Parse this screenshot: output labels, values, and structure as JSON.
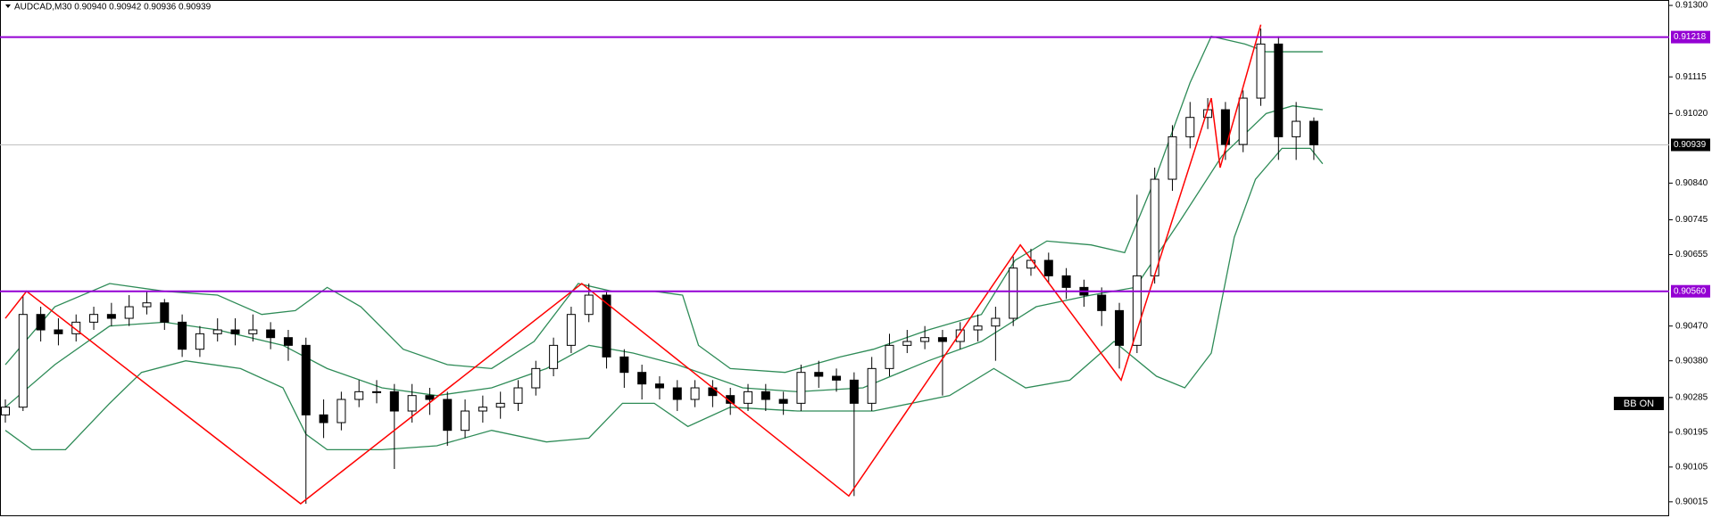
{
  "chart_data": {
    "type": "candlestick",
    "title": "AUDCAD,M30  0.90940 0.90942 0.90936 0.90939",
    "annotation": "BB ON",
    "ylim": [
      0.8998,
      0.91314
    ],
    "yticks": [
      {
        "value": 0.913,
        "label": "0.91300"
      },
      {
        "value": 0.91115,
        "label": "0.91115"
      },
      {
        "value": 0.9102,
        "label": "0.91020"
      },
      {
        "value": 0.9084,
        "label": "0.90840"
      },
      {
        "value": 0.90745,
        "label": "0.90745"
      },
      {
        "value": 0.90655,
        "label": "0.90655"
      },
      {
        "value": 0.9047,
        "label": "0.90470"
      },
      {
        "value": 0.9038,
        "label": "0.90380"
      },
      {
        "value": 0.90285,
        "label": "0.90285"
      },
      {
        "value": 0.90195,
        "label": "0.90195"
      },
      {
        "value": 0.90105,
        "label": "0.90105"
      },
      {
        "value": 0.90015,
        "label": "0.90015"
      }
    ],
    "hlines": [
      {
        "value": 0.91218,
        "label": "0.91218",
        "color": "#9400d3"
      },
      {
        "value": 0.9056,
        "label": "0.90560",
        "color": "#9400d3"
      }
    ],
    "last_price": {
      "value": 0.90939,
      "label": "0.90939",
      "color": "#c0c0c0"
    },
    "up_color": "#ffffff",
    "down_color": "#000000",
    "open": [
      0.9024,
      0.9026,
      0.905,
      0.9046,
      0.9045,
      0.9048,
      0.905,
      0.9049,
      0.9052,
      0.9053,
      0.9048,
      0.9041,
      0.9045,
      0.9046,
      0.9045,
      0.9046,
      0.9044,
      0.9042,
      0.9024,
      0.9022,
      0.9028,
      0.903,
      0.903,
      0.9025,
      0.9029,
      0.9028,
      0.902,
      0.9025,
      0.9026,
      0.9027,
      0.9031,
      0.9036,
      0.9042,
      0.905,
      0.9055,
      0.9039,
      0.9035,
      0.9032,
      0.9031,
      0.9028,
      0.9031,
      0.9029,
      0.9027,
      0.903,
      0.9028,
      0.9027,
      0.9035,
      0.9034,
      0.9033,
      0.9027,
      0.9036,
      0.9042,
      0.9043,
      0.9044,
      0.9043,
      0.9046,
      0.9047,
      0.9049,
      0.9062,
      0.9064,
      0.906,
      0.9057,
      0.9055,
      0.9051,
      0.9042,
      0.906,
      0.9085,
      0.9096,
      0.9101,
      0.9103,
      0.9094,
      0.9106,
      0.912,
      0.9096,
      0.91
    ],
    "high": [
      0.9028,
      0.9055,
      0.9052,
      0.9049,
      0.905,
      0.9052,
      0.9053,
      0.9055,
      0.9056,
      0.9054,
      0.905,
      0.9047,
      0.9049,
      0.9049,
      0.905,
      0.9048,
      0.9046,
      0.9044,
      0.9028,
      0.903,
      0.9033,
      0.9033,
      0.9032,
      0.9032,
      0.9031,
      0.903,
      0.9028,
      0.9029,
      0.903,
      0.9033,
      0.9038,
      0.9044,
      0.9052,
      0.9058,
      0.9056,
      0.9041,
      0.9037,
      0.9034,
      0.9033,
      0.9033,
      0.9033,
      0.9031,
      0.9032,
      0.9032,
      0.903,
      0.9037,
      0.9038,
      0.9036,
      0.9035,
      0.9039,
      0.9045,
      0.9046,
      0.9047,
      0.9046,
      0.9048,
      0.905,
      0.9052,
      0.9065,
      0.9067,
      0.9066,
      0.9062,
      0.9059,
      0.9057,
      0.9053,
      0.9081,
      0.9088,
      0.9099,
      0.9105,
      0.9106,
      0.9105,
      0.9108,
      0.9124,
      0.9122,
      0.9105,
      0.9101
    ],
    "low": [
      0.9022,
      0.9025,
      0.9043,
      0.9042,
      0.9043,
      0.9046,
      0.9047,
      0.9047,
      0.905,
      0.9046,
      0.9039,
      0.9039,
      0.9043,
      0.9042,
      0.9043,
      0.9041,
      0.9038,
      0.9001,
      0.9018,
      0.902,
      0.9026,
      0.9027,
      0.901,
      0.9022,
      0.9024,
      0.9016,
      0.9018,
      0.9022,
      0.9023,
      0.9025,
      0.9029,
      0.9034,
      0.904,
      0.9048,
      0.9036,
      0.9031,
      0.9028,
      0.9028,
      0.9025,
      0.9026,
      0.9026,
      0.9024,
      0.9025,
      0.9025,
      0.9024,
      0.9025,
      0.9031,
      0.903,
      0.9003,
      0.9025,
      0.9034,
      0.904,
      0.9041,
      0.9029,
      0.9041,
      0.9043,
      0.9038,
      0.9047,
      0.906,
      0.9058,
      0.9054,
      0.9052,
      0.9047,
      0.9036,
      0.904,
      0.9058,
      0.9082,
      0.9093,
      0.9098,
      0.909,
      0.9092,
      0.9104,
      0.909,
      0.909,
      0.909
    ],
    "close": [
      0.9026,
      0.905,
      0.9046,
      0.9045,
      0.9048,
      0.905,
      0.9049,
      0.9052,
      0.9053,
      0.9048,
      0.9041,
      0.9045,
      0.9046,
      0.9045,
      0.9046,
      0.9044,
      0.9042,
      0.9024,
      0.9022,
      0.9028,
      0.903,
      0.903,
      0.9025,
      0.9029,
      0.9028,
      0.902,
      0.9025,
      0.9026,
      0.9027,
      0.9031,
      0.9036,
      0.9042,
      0.905,
      0.9055,
      0.9039,
      0.9035,
      0.9032,
      0.9031,
      0.9028,
      0.9031,
      0.9029,
      0.9027,
      0.903,
      0.9028,
      0.9027,
      0.9035,
      0.9034,
      0.9033,
      0.9027,
      0.9036,
      0.9042,
      0.9043,
      0.9044,
      0.9043,
      0.9046,
      0.9047,
      0.9049,
      0.9062,
      0.9064,
      0.906,
      0.9057,
      0.9055,
      0.9051,
      0.9042,
      0.906,
      0.9085,
      0.9096,
      0.9101,
      0.9103,
      0.9094,
      0.9106,
      0.912,
      0.9096,
      0.91,
      0.90939
    ],
    "bands": {
      "color": "#2e8b57",
      "upper": {
        "x": [
          0,
          2.8,
          5.9,
          9.0,
          12.0,
          14.5,
          16.4,
          18.2,
          20.1,
          22.5,
          25.0,
          27.5,
          29.9,
          32.4,
          34.3,
          36.7,
          38.3,
          39.2,
          41.0,
          44.1,
          47.2,
          49.1,
          52.2,
          55.2,
          57.1,
          58.9,
          61.4,
          63.3,
          65.1,
          67.0,
          68.2,
          70.1,
          71.3,
          74.5
        ],
        "values": [
          0.9037,
          0.9052,
          0.9058,
          0.9056,
          0.9055,
          0.905,
          0.9051,
          0.9057,
          0.9052,
          0.9041,
          0.9037,
          0.9036,
          0.9043,
          0.9058,
          0.9056,
          0.9056,
          0.9055,
          0.9042,
          0.9036,
          0.9035,
          0.9039,
          0.9041,
          0.9046,
          0.905,
          0.9064,
          0.9069,
          0.9068,
          0.9066,
          0.9086,
          0.911,
          0.9122,
          0.912,
          0.9118,
          0.9118
        ]
      },
      "middle": {
        "x": [
          0,
          2.8,
          5.9,
          9.0,
          12.0,
          15.7,
          18.2,
          21.3,
          24.4,
          27.5,
          30.6,
          33.0,
          35.5,
          38.0,
          41.7,
          44.8,
          48.5,
          52.2,
          55.2,
          58.3,
          61.4,
          63.9,
          66.4,
          68.8,
          71.3,
          72.8,
          74.5
        ],
        "values": [
          0.9026,
          0.9037,
          0.9047,
          0.9048,
          0.9046,
          0.9042,
          0.9036,
          0.9031,
          0.9029,
          0.9031,
          0.9036,
          0.9042,
          0.904,
          0.9037,
          0.9031,
          0.903,
          0.9031,
          0.9038,
          0.9043,
          0.9052,
          0.9055,
          0.9057,
          0.9074,
          0.9091,
          0.9102,
          0.9104,
          0.9103
        ]
      },
      "lower": {
        "x": [
          0,
          1.5,
          3.4,
          5.9,
          7.7,
          10.2,
          13.3,
          15.7,
          17.0,
          18.2,
          21.3,
          24.4,
          27.5,
          30.6,
          33.0,
          34.9,
          36.7,
          38.6,
          41.0,
          44.8,
          49.1,
          53.4,
          55.9,
          57.7,
          60.2,
          62.7,
          65.1,
          66.7,
          68.2,
          69.5,
          70.7,
          72.2,
          73.8,
          74.5
        ],
        "values": [
          0.902,
          0.9015,
          0.9015,
          0.9027,
          0.9035,
          0.9038,
          0.9036,
          0.9031,
          0.9019,
          0.9015,
          0.9015,
          0.9016,
          0.902,
          0.9017,
          0.9018,
          0.9027,
          0.9027,
          0.9021,
          0.9026,
          0.9025,
          0.9025,
          0.9029,
          0.9036,
          0.9031,
          0.9033,
          0.9043,
          0.9034,
          0.9031,
          0.904,
          0.907,
          0.9085,
          0.9093,
          0.9093,
          0.9089
        ]
      }
    },
    "zigzag": {
      "color": "#ff0000",
      "x": [
        0,
        1.2,
        16.7,
        32.6,
        47.7,
        57.4,
        63.1,
        68.2,
        68.7,
        71.0
      ],
      "values": [
        0.9049,
        0.9056,
        0.9001,
        0.9058,
        0.9003,
        0.9068,
        0.9033,
        0.9106,
        0.9088,
        0.9125
      ]
    }
  }
}
